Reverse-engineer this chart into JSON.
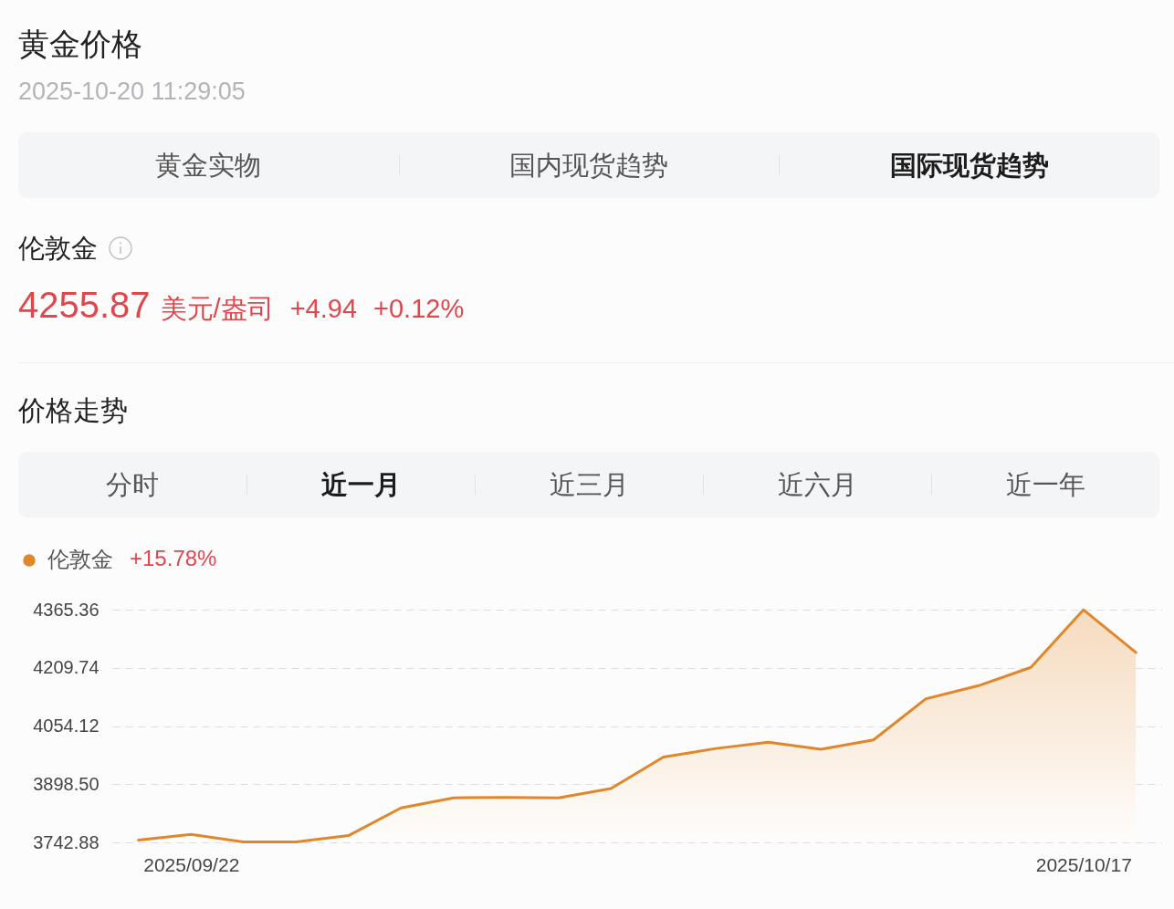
{
  "chart_data": [
    {
      "type": "other",
      "title": "黄金价格",
      "subtitle": "2025-10-20 11:29:05",
      "annotations": [
        "黄金实物",
        "国内现货趋势",
        "国际现货趋势",
        "伦敦金",
        "4255.87",
        "美元/盎司",
        "+4.94",
        "+0.12%"
      ]
    },
    {
      "type": "area",
      "title": "价格走势",
      "annotations": [
        "分时",
        "近一月",
        "近三月",
        "近六月",
        "近一年",
        "+15.78%"
      ],
      "categories": [
        null,
        "2025/09/22",
        null,
        null,
        null,
        null,
        null,
        null,
        null,
        null,
        null,
        null,
        null,
        null,
        null,
        null,
        null,
        null,
        "2025/10/17",
        null
      ],
      "series": [
        {
          "name": "伦敦金",
          "color": "#e0872b",
          "values": [
            3749,
            3764,
            3744,
            3744,
            3761,
            3835,
            3862,
            3863,
            3862,
            3887,
            3971,
            3994,
            4011,
            3992,
            4017,
            4127,
            4162,
            4211,
            4365,
            4251
          ]
        }
      ],
      "ylim": [
        3742.88,
        4365.36
      ],
      "yticks": [
        3742.88,
        {
          "value": 3898.5,
          "label": "3898.50"
        },
        4054.12,
        4209.74,
        4365.36
      ],
      "grid": "y",
      "legend": "top left"
    }
  ]
}
